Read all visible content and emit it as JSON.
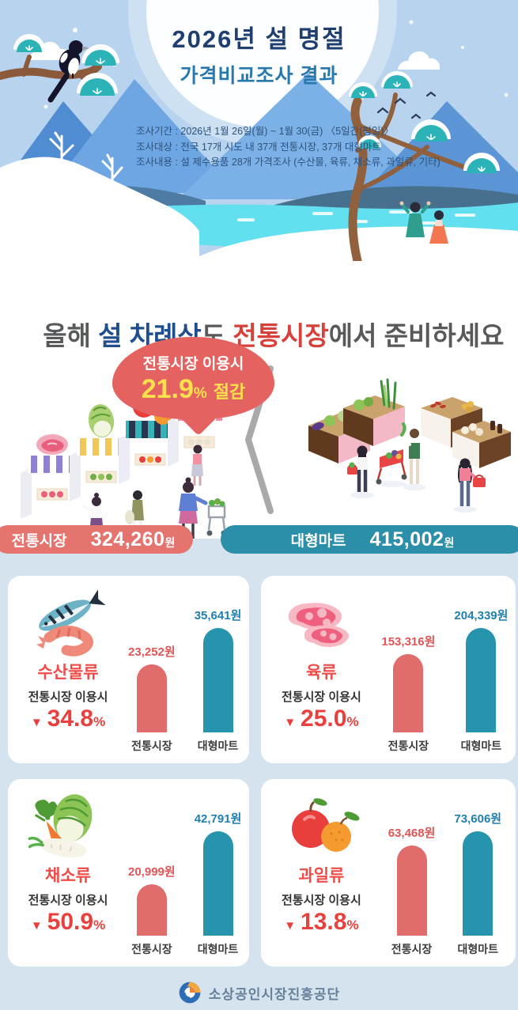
{
  "header": {
    "title_line1": "2026년 설 명절",
    "title_line2": "가격비교조사 결과",
    "survey": {
      "period": "조사기간 : 2026년 1월 26일(월) ~ 1월 30(금) 〈5일간(평일)〉",
      "target": "조사대상 : 전국 17개 시도 내 37개 전통시장, 37개 대형마트",
      "content": "조사내용 : 설 제수용품 28개 가격조사 (수산물, 육류, 채소류, 과일류, 기타)"
    }
  },
  "headline": {
    "pre": "올해 ",
    "em1": "설 차례상",
    "mid": "도 ",
    "em2": "전통시장",
    "post": "에서 준비하세요"
  },
  "bubble": {
    "line1": "전통시장 이용시",
    "percent": "21.9",
    "percent_unit": "%",
    "suffix": "절감"
  },
  "totals": {
    "market": {
      "label": "전통시장",
      "value": "324,260",
      "unit": "원"
    },
    "mart": {
      "label": "대형마트",
      "value": "415,002",
      "unit": "원"
    }
  },
  "categories": [
    {
      "name": "수산물류",
      "caption": "전통시장 이용시",
      "discount_arrow": "▼",
      "discount": "34.8",
      "discount_unit": "%",
      "market_value_label": "23,252원",
      "mart_value_label": "35,641원",
      "market_label": "전통시장",
      "mart_label": "대형마트",
      "market_amount": 23252,
      "mart_amount": 35641
    },
    {
      "name": "육류",
      "caption": "전통시장 이용시",
      "discount_arrow": "▼",
      "discount": "25.0",
      "discount_unit": "%",
      "market_value_label": "153,316원",
      "mart_value_label": "204,339원",
      "market_label": "전통시장",
      "mart_label": "대형마트",
      "market_amount": 153316,
      "mart_amount": 204339
    },
    {
      "name": "채소류",
      "caption": "전통시장 이용시",
      "discount_arrow": "▼",
      "discount": "50.9",
      "discount_unit": "%",
      "market_value_label": "20,999원",
      "mart_value_label": "42,791원",
      "market_label": "전통시장",
      "mart_label": "대형마트",
      "market_amount": 20999,
      "mart_amount": 42791
    },
    {
      "name": "과일류",
      "caption": "전통시장 이용시",
      "discount_arrow": "▼",
      "discount": "13.8",
      "discount_unit": "%",
      "market_value_label": "63,468원",
      "mart_value_label": "73,606원",
      "market_label": "전통시장",
      "mart_label": "대형마트",
      "market_amount": 63468,
      "mart_amount": 73606
    }
  ],
  "footer": {
    "org": "소상공인시장진흥공단"
  },
  "colors": {
    "sky": "#b7d3ee",
    "section_bg": "#d5e3ef",
    "bubble": "#e4625f",
    "bubble_percent": "#ffe14d",
    "market_coral": "#e06c6c",
    "mart_teal": "#2794ae",
    "pill_market": "#e5736e",
    "pill_mart": "#2b8fa9",
    "title_navy": "#1e3f70",
    "title_teal": "#2779ad",
    "headline_navy": "#1f4e8e",
    "headline_red": "#d6413b",
    "category_red": "#ef4b47"
  },
  "chart_data": [
    {
      "type": "bar",
      "categories": [
        "전통시장",
        "대형마트"
      ],
      "values": [
        324260,
        415002
      ],
      "unit": "원",
      "note": "전통시장 이용시 21.9% 절감",
      "legend_position": "none",
      "grid": false
    },
    {
      "type": "bar",
      "title": "수산물류",
      "categories": [
        "전통시장",
        "대형마트"
      ],
      "values": [
        23252,
        35641
      ],
      "unit": "원",
      "note": "전통시장 이용시 ▼ 34.8%",
      "grid": false
    },
    {
      "type": "bar",
      "title": "육류",
      "categories": [
        "전통시장",
        "대형마트"
      ],
      "values": [
        153316,
        204339
      ],
      "unit": "원",
      "note": "전통시장 이용시 ▼ 25.0%",
      "grid": false
    },
    {
      "type": "bar",
      "title": "채소류",
      "categories": [
        "전통시장",
        "대형마트"
      ],
      "values": [
        20999,
        42791
      ],
      "unit": "원",
      "note": "전통시장 이용시 ▼ 50.9%",
      "grid": false
    },
    {
      "type": "bar",
      "title": "과일류",
      "categories": [
        "전통시장",
        "대형마트"
      ],
      "values": [
        63468,
        73606
      ],
      "unit": "원",
      "note": "전통시장 이용시 ▼ 13.8%",
      "grid": false
    }
  ]
}
